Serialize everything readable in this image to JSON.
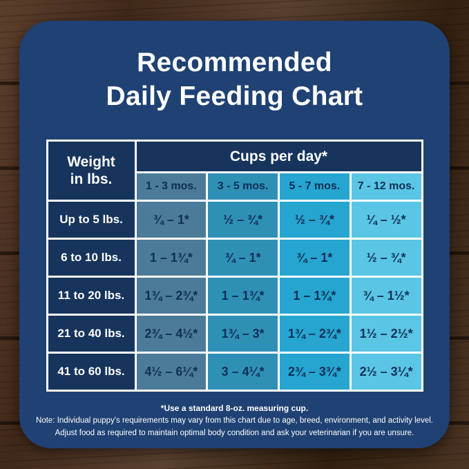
{
  "header": {
    "title_line1": "Recommended",
    "title_line2": "Daily Feeding Chart"
  },
  "chart_data": {
    "type": "table",
    "title": "Recommended Daily Feeding Chart",
    "weight_header_line1": "Weight",
    "weight_header_line2": "in lbs.",
    "cups_header": "Cups per day*",
    "age_columns": [
      "1 - 3 mos.",
      "3 - 5 mos.",
      "5 - 7 mos.",
      "7 - 12 mos."
    ],
    "rows": [
      {
        "weight": "Up to 5 lbs.",
        "values": [
          "¾ – 1*",
          "½ – ¾*",
          "½ – ¾*",
          "¼ – ½*"
        ]
      },
      {
        "weight": "6 to 10 lbs.",
        "values": [
          "1 – 1¾*",
          "¾ – 1*",
          "¾ – 1*",
          "½ – ¾*"
        ]
      },
      {
        "weight": "11 to 20 lbs.",
        "values": [
          "1¾ – 2¾*",
          "1 – 1¾*",
          "1 – 1¾*",
          "¾ – 1½*"
        ]
      },
      {
        "weight": "21 to 40 lbs.",
        "values": [
          "2¾ – 4½*",
          "1¾ – 3*",
          "1¾ – 2¾*",
          "1½ – 2½*"
        ]
      },
      {
        "weight": "41 to 60 lbs.",
        "values": [
          "4½ – 6¼*",
          "3 – 4¼*",
          "2¾ – 3¾*",
          "2½ – 3¼*"
        ]
      }
    ]
  },
  "footnotes": {
    "line1": "*Use a standard 8-oz. measuring cup.",
    "line2": "Note: Individual puppy's requirements may vary from this chart due to age, breed, environment, and activity level.",
    "line3": "Adjust food as required to maintain optimal body condition and ask your veterinarian if you are unsure."
  },
  "colors": {
    "card_bg": "#1f4173",
    "table_dark": "#16345c",
    "col_1_3_mos": "#4b7b98",
    "col_3_5_mos": "#2f90b6",
    "col_5_7_mos": "#25a5d0",
    "col_7_12_mos": "#5ac5e4",
    "border": "#ffffff",
    "cell_text": "#0f2f55",
    "wood_brown": "#47301f"
  }
}
